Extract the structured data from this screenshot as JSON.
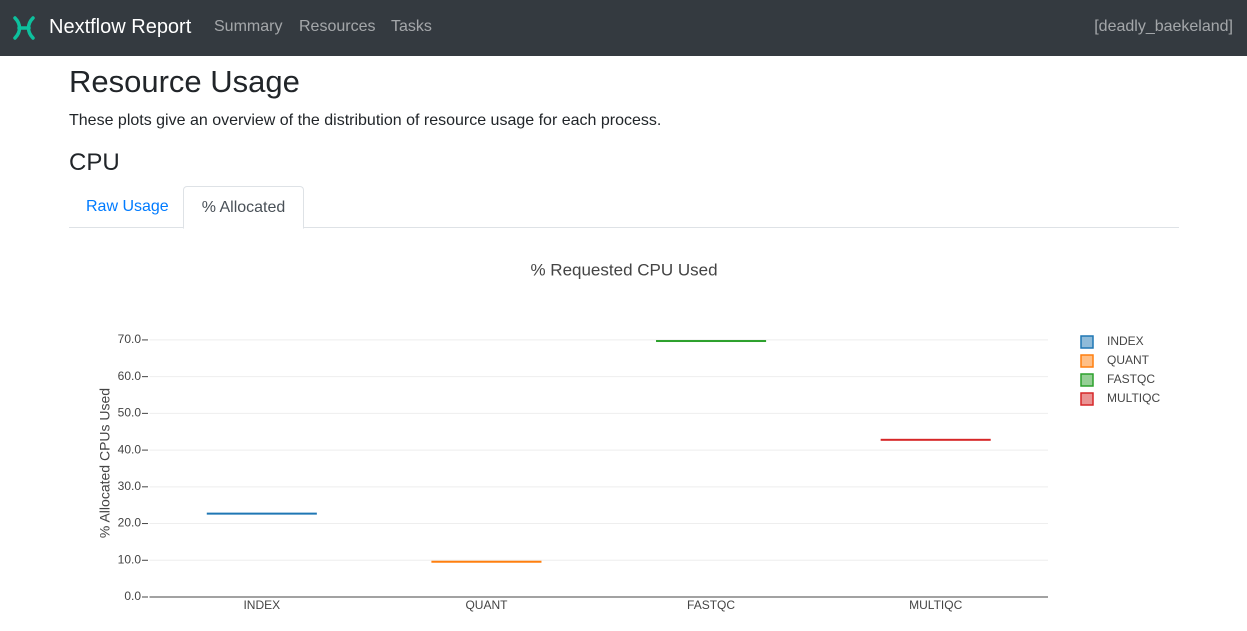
{
  "navbar": {
    "brand": "Nextflow Report",
    "links": [
      "Summary",
      "Resources",
      "Tasks"
    ],
    "run_name": "[deadly_baekeland]"
  },
  "heading": "Resource Usage",
  "description": "These plots give an overview of the distribution of resource usage for each process.",
  "section": "CPU",
  "tabs": [
    "Raw Usage",
    "% Allocated"
  ],
  "chart_data": {
    "type": "box",
    "title": "% Requested CPU Used",
    "y_label": "% Allocated CPUs Used",
    "categories": [
      "INDEX",
      "QUANT",
      "FASTQC",
      "MULTIQC"
    ],
    "series": [
      {
        "name": "INDEX",
        "color": "#1f77b4",
        "values": [
          22.7
        ]
      },
      {
        "name": "QUANT",
        "color": "#ff7f0e",
        "values": [
          9.6
        ]
      },
      {
        "name": "FASTQC",
        "color": "#2ca02c",
        "values": [
          69.7
        ]
      },
      {
        "name": "MULTIQC",
        "color": "#d62728",
        "values": [
          42.8
        ]
      }
    ],
    "ylim": [
      0,
      72.7
    ],
    "yticks": [
      {
        "value": 0,
        "label": "0.0"
      },
      {
        "value": 10,
        "label": "10.0"
      },
      {
        "value": 20,
        "label": "20.0"
      },
      {
        "value": 30,
        "label": "30.0"
      },
      {
        "value": 40,
        "label": "40.0"
      },
      {
        "value": 50,
        "label": "50.0"
      },
      {
        "value": 60,
        "label": "60.0"
      },
      {
        "value": 70,
        "label": "70.0"
      }
    ],
    "grid": true
  }
}
